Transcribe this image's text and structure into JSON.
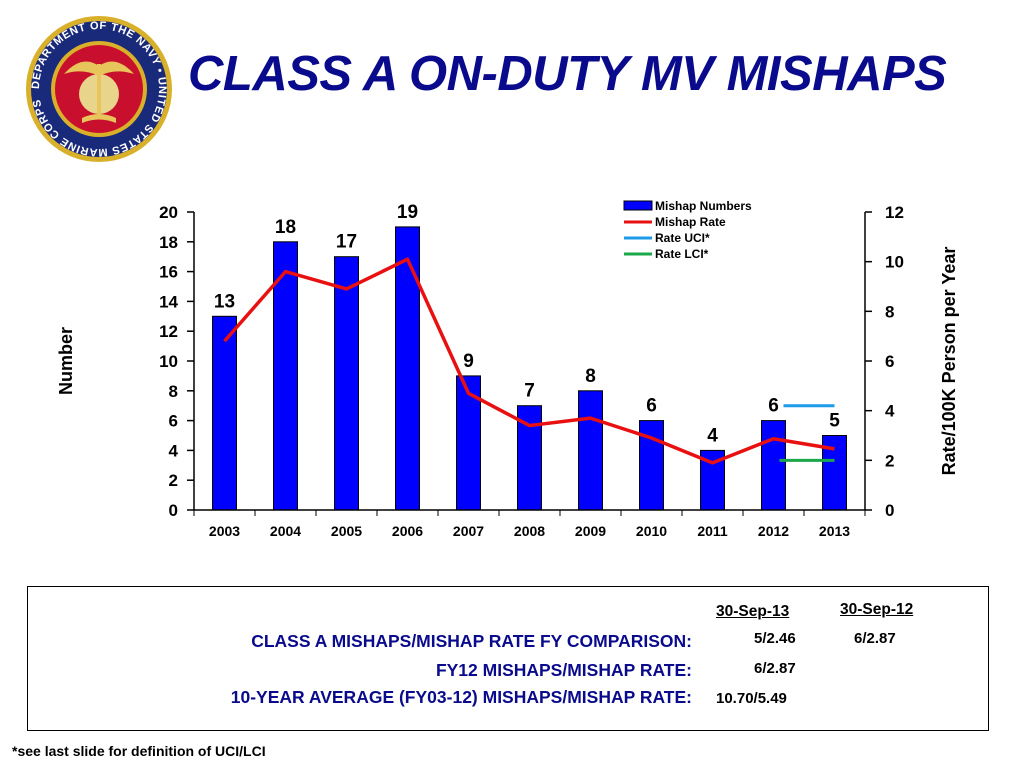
{
  "title": "CLASS A ON-DUTY  MV MISHAPS",
  "seal": {
    "text": "DEPARTMENT OF THE NAVY • UNITED STATES MARINE CORPS",
    "icon": "usmc-seal-icon"
  },
  "colors": {
    "title": "#0a0a8c",
    "bars": "#0000ff",
    "rate": "#e81010",
    "uci": "#1e9be8",
    "lci": "#1aa84a"
  },
  "chart_data": {
    "type": "bar",
    "categories": [
      "2003",
      "2004",
      "2005",
      "2006",
      "2007",
      "2008",
      "2009",
      "2010",
      "2011",
      "2012",
      "2013"
    ],
    "series": [
      {
        "name": "Mishap Numbers",
        "type": "bar",
        "axis": "left",
        "values": [
          13,
          18,
          17,
          19,
          9,
          7,
          8,
          6,
          4,
          6,
          5
        ]
      },
      {
        "name": "Mishap Rate",
        "type": "line",
        "axis": "right",
        "values": [
          6.8,
          9.6,
          8.9,
          10.1,
          4.7,
          3.4,
          3.7,
          2.9,
          1.9,
          2.87,
          2.46
        ]
      },
      {
        "name": "Rate UCI*",
        "type": "line",
        "axis": "right",
        "x_range": [
          "2012",
          "2013"
        ],
        "value": 4.2
      },
      {
        "name": "Rate LCI*",
        "type": "line",
        "axis": "right",
        "x_range": [
          "2012",
          "2013"
        ],
        "value": 2.0
      }
    ],
    "bar_labels": [
      "13",
      "18",
      "17",
      "19",
      "9",
      "7",
      "8",
      "6",
      "4",
      "6",
      "5"
    ],
    "ylabel": "Number",
    "y2label": "Rate/100K Person per Year",
    "ylim": [
      0,
      20
    ],
    "y2lim": [
      0,
      12
    ],
    "yticks": [
      "0",
      "2",
      "4",
      "6",
      "8",
      "10",
      "12",
      "14",
      "16",
      "18",
      "20"
    ],
    "y2ticks": [
      "0",
      "2",
      "4",
      "6",
      "8",
      "10",
      "12"
    ],
    "legend": {
      "placement": "top-right",
      "entries": [
        "Mishap Numbers",
        "Mishap Rate",
        "Rate UCI*",
        "Rate LCI*"
      ]
    },
    "grid": false
  },
  "comparison": {
    "col1": "30-Sep-13",
    "col2": "30-Sep-12",
    "rows": [
      {
        "label": "CLASS A MISHAPS/MISHAP RATE FY COMPARISON:",
        "v1": "5/2.46",
        "v2": "6/2.87"
      },
      {
        "label": "FY12 MISHAPS/MISHAP RATE:",
        "v1": "6/2.87"
      },
      {
        "label": "10-YEAR AVERAGE (FY03-12) MISHAPS/MISHAP RATE:",
        "v1": "10.70/5.49"
      }
    ]
  },
  "footnote": "*see last slide for definition of UCI/LCI"
}
